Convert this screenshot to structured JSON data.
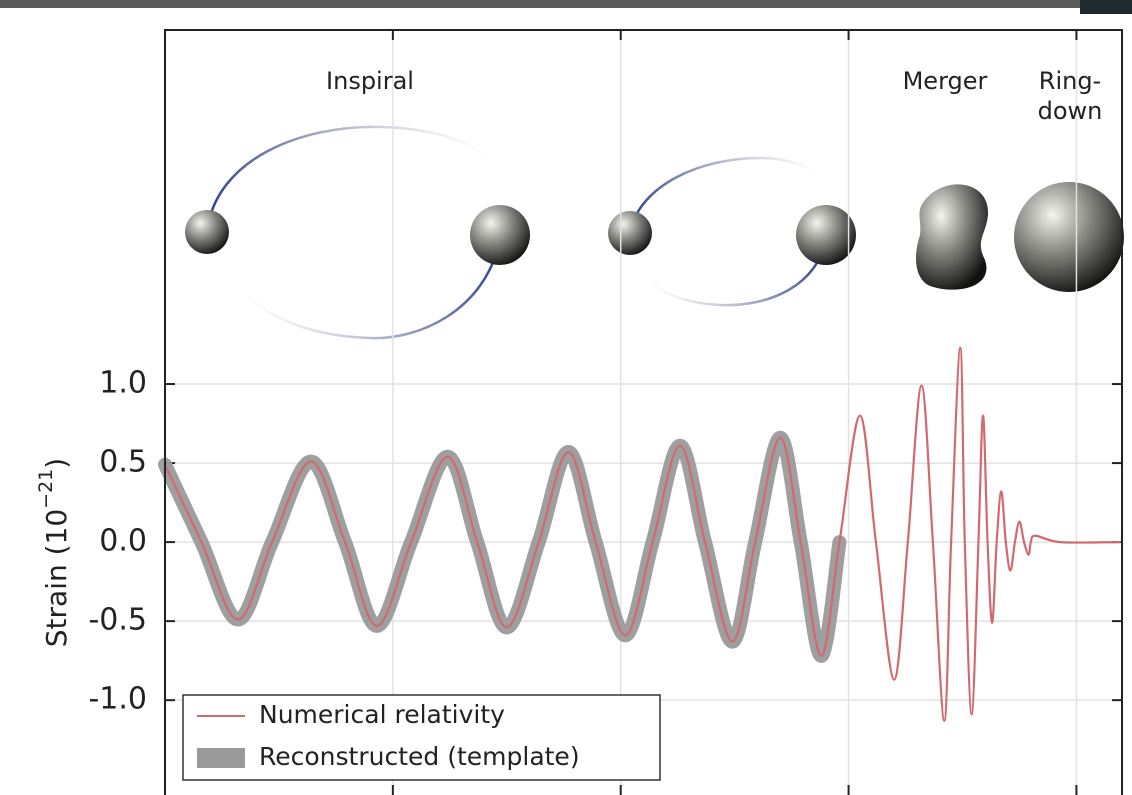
{
  "chart_data": {
    "type": "line",
    "annotations": [
      "Inspiral",
      "Merger",
      "Ring-",
      "down"
    ],
    "ylabel": [
      "Strain (10",
      "−21",
      ")"
    ],
    "x": [
      0.0,
      0.16,
      0.32,
      0.47,
      0.64,
      0.79,
      0.93,
      1.08,
      1.24,
      1.37,
      1.5,
      1.64,
      1.77,
      1.89,
      2.02,
      2.14,
      2.26,
      2.37,
      2.49,
      2.59,
      2.7,
      2.79,
      2.88,
      2.96,
      3.05,
      3.12,
      3.2,
      3.26,
      3.32,
      3.37,
      3.42,
      3.45,
      3.49,
      3.51,
      3.54,
      3.57,
      3.59,
      3.61,
      3.63,
      3.65,
      3.67,
      3.69,
      3.71,
      3.73,
      3.75,
      3.77,
      3.79,
      3.8,
      3.82,
      3.93,
      4.19
    ],
    "series": [
      {
        "name": "Numerical relativity",
        "color": "#d06a70",
        "values": [
          0.49,
          0,
          -0.49,
          0,
          0.51,
          0,
          -0.53,
          0,
          0.54,
          0,
          -0.54,
          0,
          0.57,
          0,
          -0.59,
          0,
          0.61,
          0,
          -0.63,
          0,
          0.66,
          0,
          -0.72,
          0,
          0.8,
          0,
          -0.87,
          0,
          0.99,
          0,
          -1.13,
          0,
          1.23,
          0,
          -1.09,
          0,
          0.8,
          0,
          -0.51,
          0,
          0.32,
          0,
          -0.18,
          0,
          0.13,
          0,
          -0.08,
          0,
          0.04,
          0,
          0
        ]
      },
      {
        "name": "Reconstructed (template)",
        "color": "#9a9a9a",
        "values": [
          0.49,
          0,
          -0.49,
          0,
          0.51,
          0,
          -0.53,
          0,
          0.54,
          0,
          -0.54,
          0,
          0.57,
          0,
          -0.59,
          0,
          0.61,
          0,
          -0.63,
          0,
          0.66,
          0,
          -0.72,
          0,
          null,
          null,
          null,
          null,
          null,
          null,
          null,
          null,
          null,
          null,
          null,
          null,
          null,
          null,
          null,
          null,
          null,
          null,
          null,
          null,
          null,
          null,
          null,
          null,
          null,
          null,
          null
        ]
      }
    ],
    "xlim": [
      0,
      4.2
    ],
    "xticks": [
      1,
      2,
      3,
      4
    ],
    "ylim": [
      -1.6,
      3.24
    ],
    "yticks": [
      {
        "value": 1,
        "label": "1.0"
      },
      0.5,
      {
        "value": 0,
        "label": "0.0"
      },
      -0.5,
      {
        "value": -1,
        "label": "-1.0"
      }
    ],
    "grid": true,
    "legend": "lower left"
  }
}
